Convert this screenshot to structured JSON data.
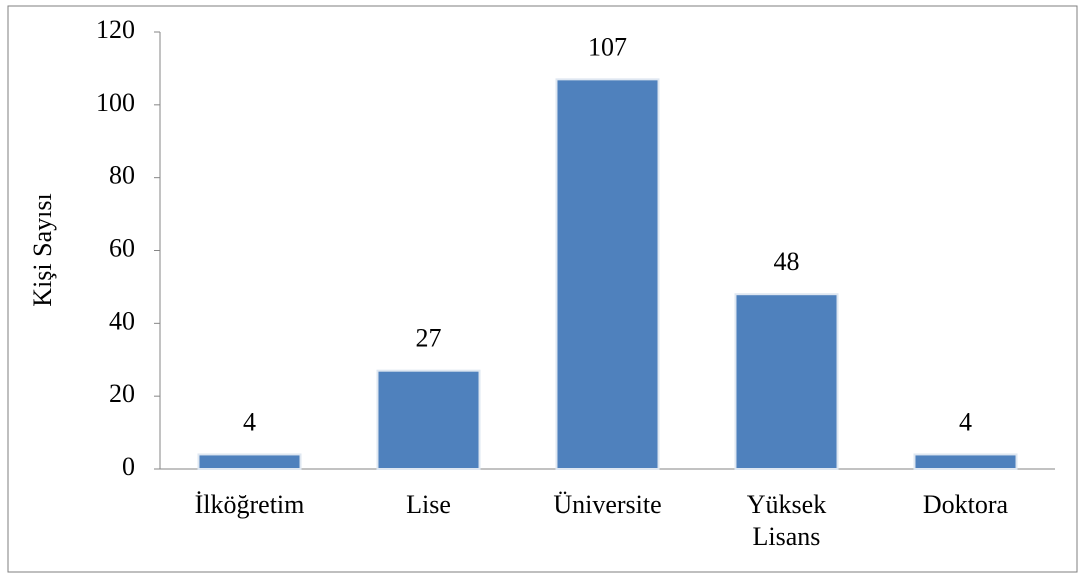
{
  "chart_data": {
    "type": "bar",
    "y_label": "Kişi Sayısı",
    "categories": [
      "İlköğretim",
      "Lise",
      "Üniversite",
      "Yüksek Lisans",
      "Doktora"
    ],
    "values": [
      4,
      27,
      107,
      48,
      4
    ],
    "color": "#4f81bd",
    "ylim": [
      0,
      120
    ],
    "yticks": [
      0,
      20,
      40,
      60,
      80,
      100,
      120
    ],
    "grid": false
  }
}
